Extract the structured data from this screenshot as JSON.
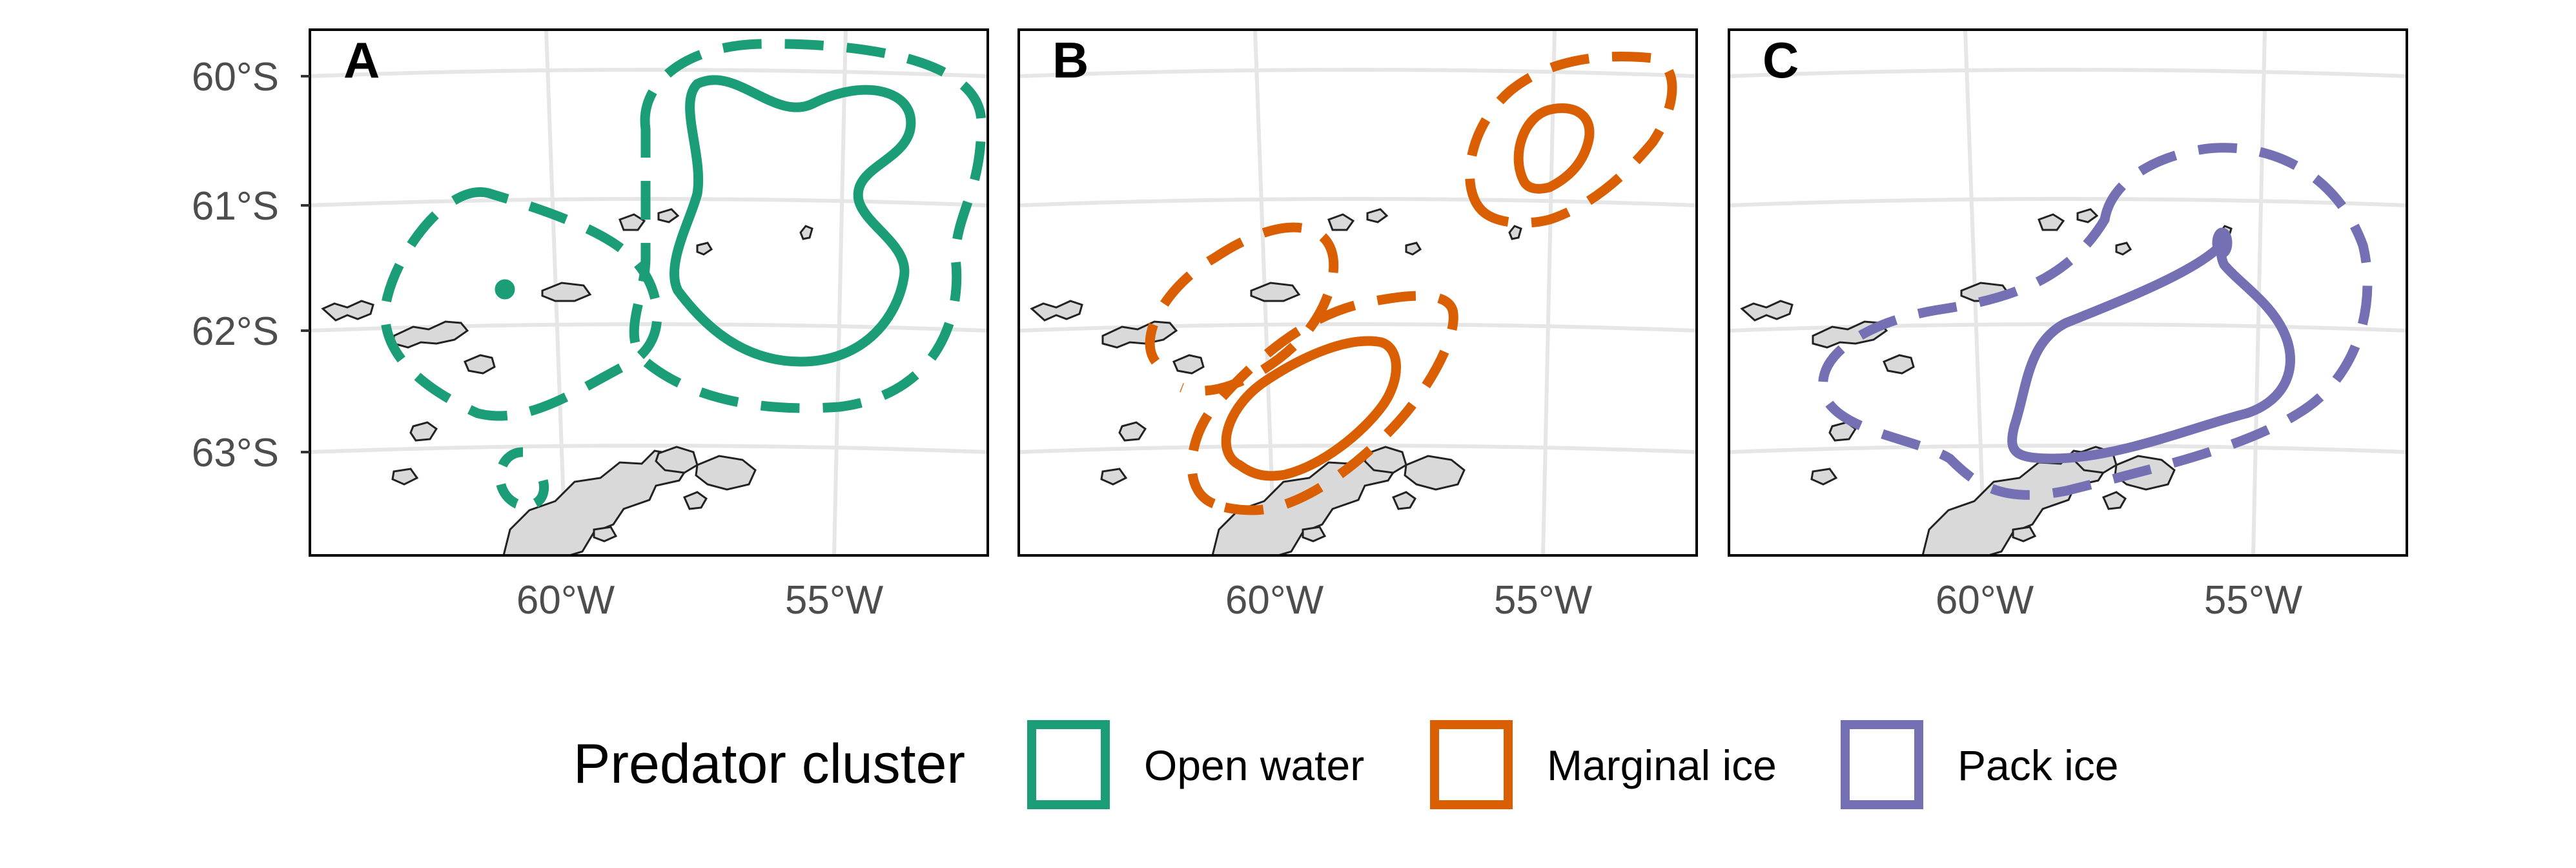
{
  "chart_data": {
    "type": "map",
    "panels": [
      {
        "tag": "A",
        "cluster": "Open water",
        "color": "#1b9e77"
      },
      {
        "tag": "B",
        "cluster": "Marginal ice",
        "color": "#d95f02"
      },
      {
        "tag": "C",
        "cluster": "Pack ice",
        "color": "#7570b3"
      }
    ],
    "y_ticks": [
      "60°S",
      "61°S",
      "62°S",
      "63°S"
    ],
    "x_ticks": [
      "60°W",
      "55°W"
    ],
    "legend": {
      "title": "Predator cluster",
      "entries": [
        {
          "label": "Open water",
          "color": "#1b9e77"
        },
        {
          "label": "Marginal ice",
          "color": "#d95f02"
        },
        {
          "label": "Pack ice",
          "color": "#7570b3"
        }
      ]
    },
    "contour_styles": [
      "solid",
      "dashed"
    ],
    "land_color": "#d9d9d9",
    "grid": true
  }
}
